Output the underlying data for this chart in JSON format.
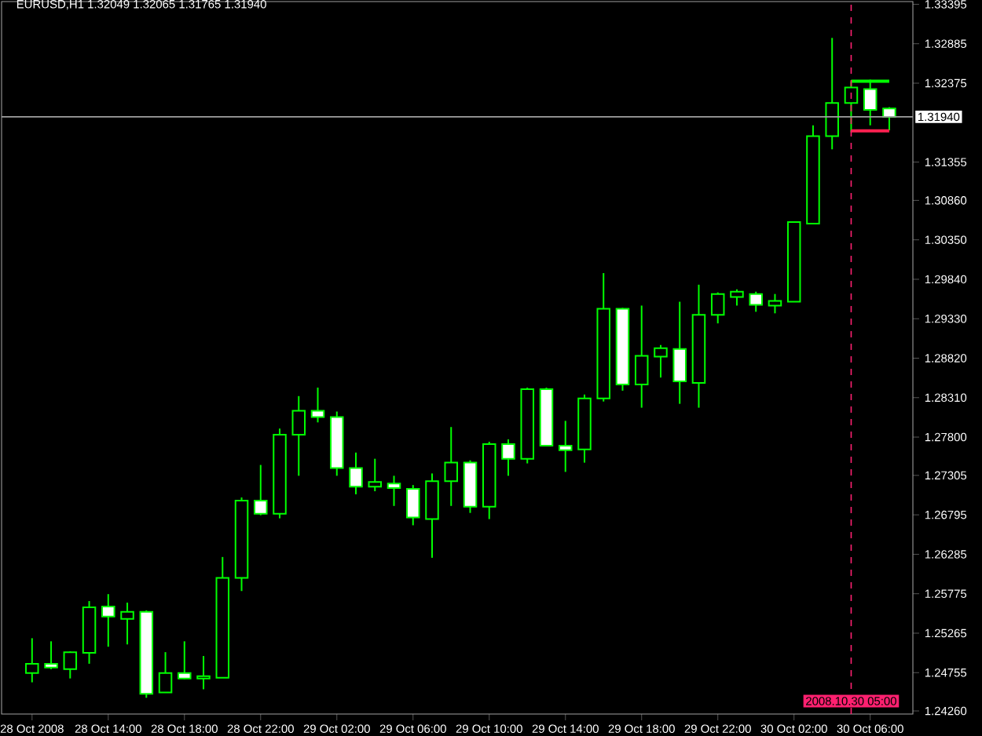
{
  "chart_data": {
    "type": "candlestick",
    "title": "EURUSD,H1  1.32049 1.32065 1.31765 1.31940",
    "color": "#00ff00",
    "categories": [
      "28 Oct 2008",
      null,
      null,
      null,
      "28 Oct 14:00",
      null,
      null,
      null,
      "28 Oct 18:00",
      null,
      null,
      null,
      "28 Oct 22:00",
      null,
      null,
      null,
      "29 Oct 02:00",
      null,
      null,
      null,
      "29 Oct 06:00",
      null,
      null,
      null,
      "29 Oct 10:00",
      null,
      null,
      null,
      "29 Oct 14:00",
      null,
      null,
      null,
      "29 Oct 18:00",
      null,
      null,
      null,
      "29 Oct 22:00",
      null,
      null,
      null,
      "30 Oct 02:00",
      null,
      null,
      "2008.10.30 05:00",
      "30 Oct 06:00",
      null
    ],
    "ohlc": [
      [
        1.2475,
        1.252,
        1.2463,
        1.2487
      ],
      [
        1.2487,
        1.2516,
        1.248,
        1.2482
      ],
      [
        1.248,
        1.2503,
        1.2468,
        1.2502
      ],
      [
        1.2501,
        1.2568,
        1.2487,
        1.256
      ],
      [
        1.2561,
        1.2577,
        1.2509,
        1.2548
      ],
      [
        1.2545,
        1.2566,
        1.2512,
        1.2554
      ],
      [
        1.2554,
        1.2556,
        1.2443,
        1.2448
      ],
      [
        1.245,
        1.2502,
        1.245,
        1.2475
      ],
      [
        1.2475,
        1.2516,
        1.2467,
        1.2468
      ],
      [
        1.2468,
        1.2497,
        1.2454,
        1.2471
      ],
      [
        1.2469,
        1.2625,
        1.2469,
        1.2598
      ],
      [
        1.2598,
        1.2702,
        1.2581,
        1.2698
      ],
      [
        1.2698,
        1.2744,
        1.2679,
        1.2681
      ],
      [
        1.2681,
        1.2791,
        1.2675,
        1.2783
      ],
      [
        1.2783,
        1.2833,
        1.273,
        1.2814
      ],
      [
        1.2814,
        1.2844,
        1.2799,
        1.2806
      ],
      [
        1.2806,
        1.2813,
        1.273,
        1.274
      ],
      [
        1.274,
        1.276,
        1.2706,
        1.2716
      ],
      [
        1.2716,
        1.2752,
        1.271,
        1.2722
      ],
      [
        1.272,
        1.273,
        1.2691,
        1.2714
      ],
      [
        1.2713,
        1.2718,
        1.2666,
        1.2676
      ],
      [
        1.2674,
        1.2733,
        1.2624,
        1.2723
      ],
      [
        1.2723,
        1.2793,
        1.2691,
        1.2747
      ],
      [
        1.2747,
        1.275,
        1.2682,
        1.269
      ],
      [
        1.269,
        1.2774,
        1.2674,
        1.2771
      ],
      [
        1.2771,
        1.2777,
        1.273,
        1.2752
      ],
      [
        1.2752,
        1.2844,
        1.2746,
        1.2842
      ],
      [
        1.2842,
        1.2844,
        1.2769,
        1.2769
      ],
      [
        1.2769,
        1.2801,
        1.2735,
        1.2763
      ],
      [
        1.2764,
        1.2835,
        1.2747,
        1.283
      ],
      [
        1.283,
        1.2992,
        1.2826,
        1.2946
      ],
      [
        1.2946,
        1.2947,
        1.284,
        1.2848
      ],
      [
        1.2848,
        1.295,
        1.2818,
        1.2885
      ],
      [
        1.2884,
        1.2899,
        1.2857,
        1.2895
      ],
      [
        1.2894,
        1.2955,
        1.2823,
        1.2852
      ],
      [
        1.285,
        1.2977,
        1.2818,
        1.2938
      ],
      [
        1.2938,
        1.2967,
        1.2927,
        1.2965
      ],
      [
        1.2961,
        1.2971,
        1.295,
        1.2968
      ],
      [
        1.2965,
        1.2968,
        1.2942,
        1.2951
      ],
      [
        1.295,
        1.2965,
        1.294,
        1.2956
      ],
      [
        1.2955,
        1.3059,
        1.2955,
        1.3058
      ],
      [
        1.3056,
        1.3183,
        1.3056,
        1.3169
      ],
      [
        1.3169,
        1.3296,
        1.3152,
        1.3212
      ],
      [
        1.3212,
        1.324,
        1.3174,
        1.3232
      ],
      [
        1.323,
        1.3242,
        1.3183,
        1.3203
      ],
      [
        1.32049,
        1.32065,
        1.31765,
        1.3194
      ]
    ],
    "series": [
      {
        "type": "line",
        "color": "#00ff00",
        "values": [
          null,
          null,
          null,
          null,
          null,
          null,
          null,
          null,
          null,
          null,
          null,
          null,
          null,
          null,
          null,
          null,
          null,
          null,
          null,
          null,
          null,
          null,
          null,
          null,
          null,
          null,
          null,
          null,
          null,
          null,
          null,
          null,
          null,
          null,
          null,
          null,
          null,
          null,
          null,
          null,
          null,
          null,
          null,
          1.324,
          1.324,
          1.324
        ]
      },
      {
        "type": "line",
        "color": "#ff2050",
        "values": [
          null,
          null,
          null,
          null,
          null,
          null,
          null,
          null,
          null,
          null,
          null,
          null,
          null,
          null,
          null,
          null,
          null,
          null,
          null,
          null,
          null,
          null,
          null,
          null,
          null,
          null,
          null,
          null,
          null,
          null,
          null,
          null,
          null,
          null,
          null,
          null,
          null,
          null,
          null,
          null,
          null,
          null,
          null,
          1.3176,
          1.3176,
          1.3176
        ]
      }
    ],
    "ylim": [
      1.2422,
      1.3343
    ],
    "yticks": [
      1.33395,
      1.32885,
      1.32375,
      1.31355,
      {
        "value": 1.3086,
        "label": "1.30860"
      },
      {
        "value": 1.3035,
        "label": "1.30350"
      },
      {
        "value": 1.2984,
        "label": "1.29840"
      },
      {
        "value": 1.2933,
        "label": "1.29330"
      },
      {
        "value": 1.2882,
        "label": "1.28820"
      },
      {
        "value": 1.2831,
        "label": "1.28310"
      },
      {
        "value": 1.278,
        "label": "1.27800"
      },
      1.27305,
      1.26795,
      1.26285,
      1.25775,
      1.25265,
      1.24755,
      {
        "value": 1.2426,
        "label": "1.24260"
      }
    ],
    "ref_lines": [
      {
        "axis": "y",
        "value": 1.3194,
        "label": "1.31940",
        "color": "#a0a0a0",
        "line_style": "solid"
      },
      {
        "axis": "x",
        "value": "2008.10.30 05:00",
        "color": "#ff2070",
        "line_style": "dashed"
      }
    ]
  }
}
